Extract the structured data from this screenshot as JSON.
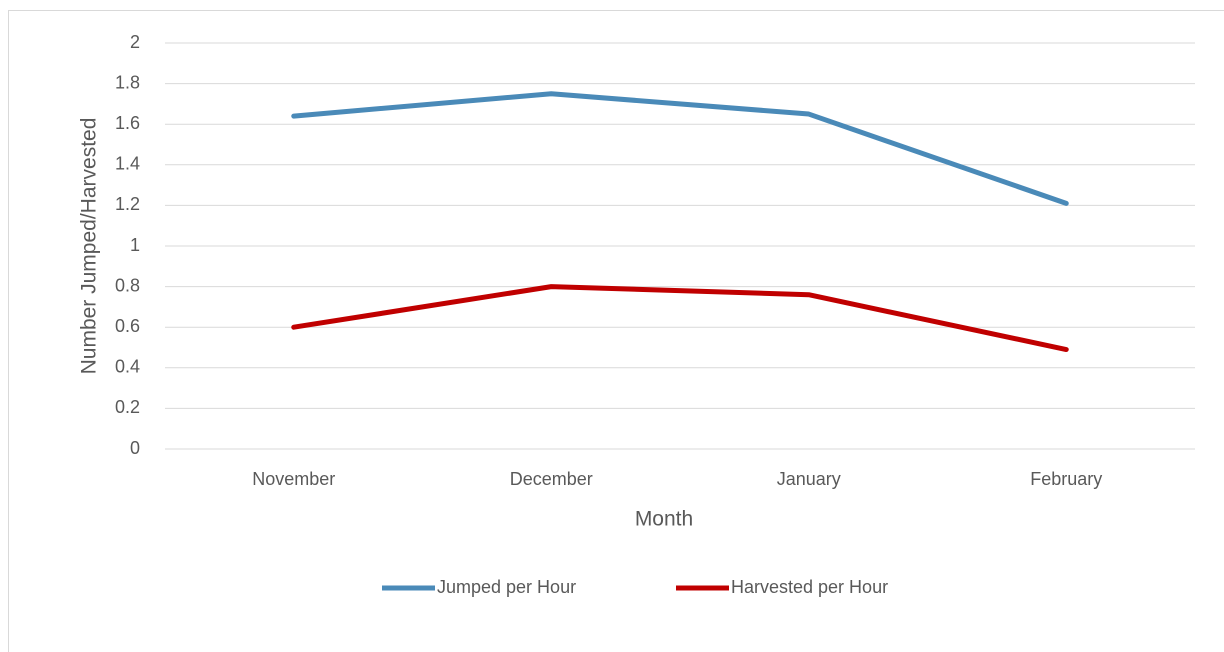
{
  "chart_data": {
    "type": "line",
    "x_label": "Month",
    "y_label": "Number Jumped/Harvested",
    "categories": [
      "November",
      "December",
      "January",
      "February"
    ],
    "series": [
      {
        "name": "Jumped per Hour",
        "color": "#4a8ab8",
        "values": [
          1.64,
          1.75,
          1.65,
          1.21
        ]
      },
      {
        "name": "Harvested per Hour",
        "color": "#c00000",
        "values": [
          0.6,
          0.8,
          0.76,
          0.49
        ]
      }
    ],
    "ylim": [
      0,
      2
    ],
    "yticks": [
      0,
      0.2,
      0.4,
      0.6,
      0.8,
      1,
      1.2,
      1.4,
      1.6,
      1.8,
      2
    ],
    "grid": true,
    "legend": "bottom"
  }
}
